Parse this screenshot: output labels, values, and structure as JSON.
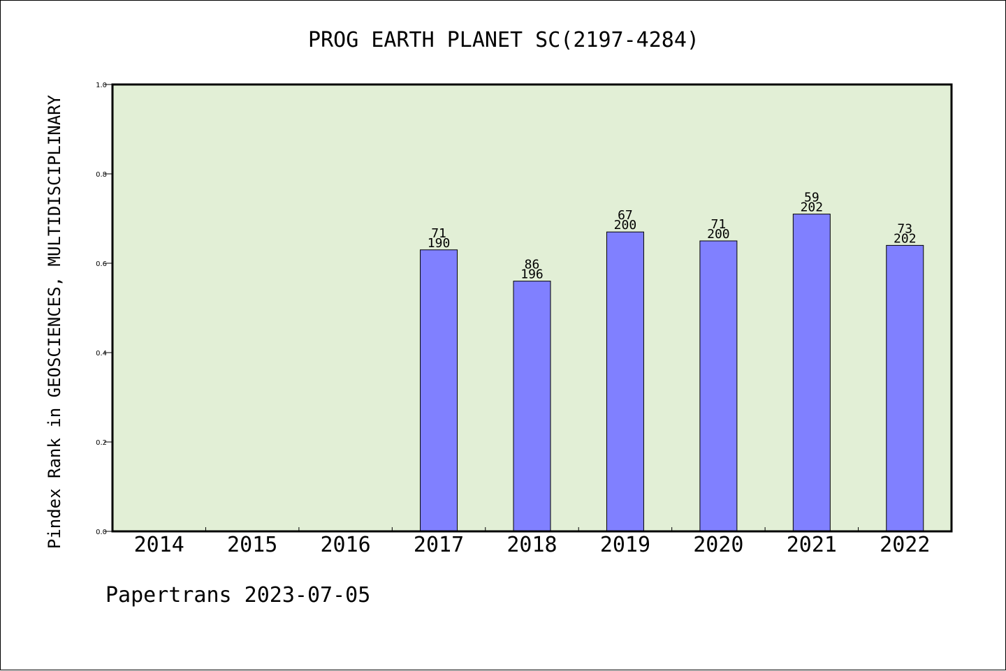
{
  "colors": {
    "plot_background": "#e2efd6",
    "bar_fill": "#8080ff",
    "bar_stroke": "#000000",
    "axis": "#000000",
    "text": "#000000"
  },
  "footer": {
    "text": "Papertrans 2023-07-05"
  },
  "chart_data": {
    "type": "bar",
    "title": "PROG EARTH PLANET SC(2197-4284)",
    "xlabel": "",
    "ylabel": "Pindex Rank in GEOSCIENCES, MULTIDISCIPLINARY",
    "categories": [
      "2014",
      "2015",
      "2016",
      "2017",
      "2018",
      "2019",
      "2020",
      "2021",
      "2022"
    ],
    "values": [
      null,
      null,
      null,
      0.63,
      0.56,
      0.67,
      0.65,
      0.71,
      0.64
    ],
    "bar_labels": [
      null,
      null,
      null,
      {
        "rank": "71",
        "total": "190"
      },
      {
        "rank": "86",
        "total": "196"
      },
      {
        "rank": "67",
        "total": "200"
      },
      {
        "rank": "71",
        "total": "200"
      },
      {
        "rank": "59",
        "total": "202"
      },
      {
        "rank": "73",
        "total": "202"
      }
    ],
    "ylim": [
      0,
      1.0
    ],
    "yticks": [
      "0.0",
      "0.2",
      "0.4",
      "0.6",
      "0.8",
      "1.0"
    ],
    "grid": false,
    "legend": "none"
  }
}
